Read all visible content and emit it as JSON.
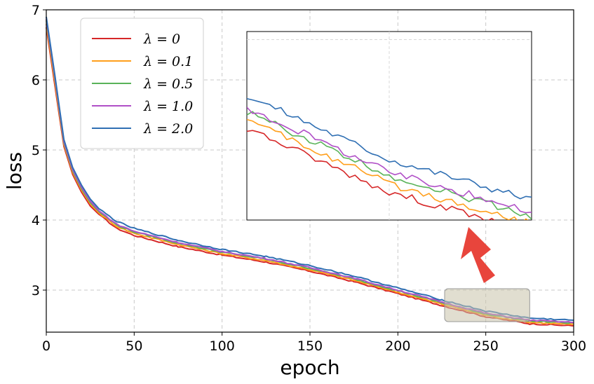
{
  "chart_data": {
    "type": "line",
    "xlabel": "epoch",
    "ylabel": "loss",
    "xlim": [
      0,
      300
    ],
    "ylim": [
      2.4,
      7
    ],
    "x_ticks": [
      "0",
      "50",
      "100",
      "150",
      "200",
      "250",
      "300"
    ],
    "y_ticks": [
      "3",
      "4",
      "5",
      "6",
      "7"
    ],
    "grid": true,
    "legend_position": "top-left",
    "x": [
      0,
      5,
      10,
      15,
      20,
      25,
      30,
      40,
      50,
      75,
      100,
      125,
      150,
      175,
      200,
      225,
      250,
      275,
      300
    ],
    "series": [
      {
        "name": "λ = 0",
        "color": "#d62728",
        "values": [
          6.75,
          5.9,
          5.05,
          4.65,
          4.4,
          4.2,
          4.08,
          3.88,
          3.78,
          3.62,
          3.5,
          3.4,
          3.27,
          3.12,
          2.95,
          2.78,
          2.62,
          2.52,
          2.49
        ]
      },
      {
        "name": "λ = 0.1",
        "color": "#ff9f1c",
        "values": [
          6.8,
          5.95,
          5.08,
          4.68,
          4.43,
          4.23,
          4.1,
          3.91,
          3.81,
          3.65,
          3.52,
          3.42,
          3.29,
          3.14,
          2.97,
          2.8,
          2.64,
          2.54,
          2.51
        ]
      },
      {
        "name": "λ = 0.5",
        "color": "#59b359",
        "values": [
          6.85,
          6.0,
          5.1,
          4.7,
          4.45,
          4.25,
          4.12,
          3.93,
          3.83,
          3.67,
          3.54,
          3.44,
          3.31,
          3.16,
          2.99,
          2.82,
          2.66,
          2.56,
          2.53
        ]
      },
      {
        "name": "λ = 1.0",
        "color": "#b04fc7",
        "values": [
          6.87,
          6.02,
          5.12,
          4.72,
          4.47,
          4.27,
          4.13,
          3.94,
          3.84,
          3.68,
          3.55,
          3.45,
          3.32,
          3.17,
          3.0,
          2.83,
          2.67,
          2.57,
          2.54
        ]
      },
      {
        "name": "λ = 2.0",
        "color": "#2f6fb3",
        "values": [
          6.9,
          6.05,
          5.15,
          4.75,
          4.5,
          4.3,
          4.16,
          3.98,
          3.88,
          3.71,
          3.58,
          3.48,
          3.35,
          3.2,
          3.03,
          2.86,
          2.7,
          2.6,
          2.57
        ]
      }
    ],
    "inset": {
      "description_source_range_x": [
        225,
        275
      ],
      "description_source_range_y": [
        2.55,
        3.02
      ]
    }
  }
}
